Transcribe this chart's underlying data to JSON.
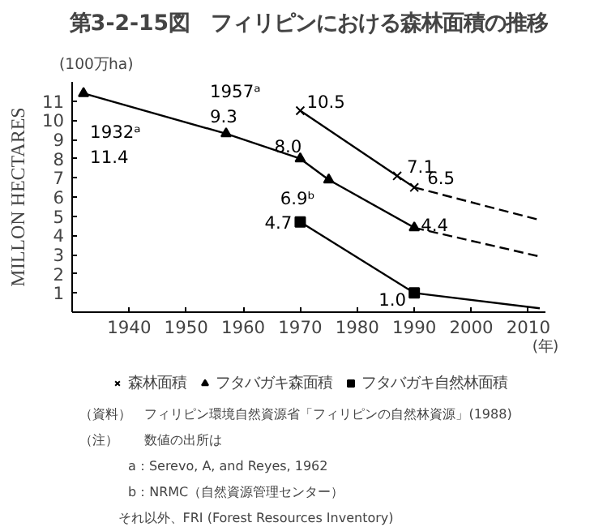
{
  "chart_data": {
    "type": "line",
    "title": "第3-2-15図　フィリピンにおける森林面積の推移",
    "ylabel": "MILLON HECTARES",
    "xlabel": "(年)",
    "xlim": [
      1930,
      2013
    ],
    "xticks": [
      1940,
      1950,
      1960,
      1970,
      1980,
      1990,
      2000,
      2010
    ],
    "ylim": [
      0,
      12
    ],
    "yticks": [
      1,
      2,
      3,
      4,
      5,
      6,
      7,
      8,
      9,
      10,
      11
    ],
    "grid": false,
    "legend": "bottom",
    "line_style": "solid",
    "series": [
      {
        "name": "森林面積",
        "color": "#000000",
        "marker": "cross",
        "x": [
          1970,
          1987,
          1990
        ],
        "values": [
          10.5,
          7.1,
          6.5
        ],
        "value_labels": [
          "10.5",
          "7.1",
          "6.5"
        ]
      },
      {
        "name": "フタバガキ森面積",
        "color": "#000000",
        "marker": "triangle",
        "x": [
          1932,
          1957,
          1970,
          1975,
          1990
        ],
        "values": [
          11.4,
          9.3,
          8.0,
          6.9,
          4.4
        ],
        "value_labels": [
          "1932ᵃ\n11.4",
          "1957ᵃ\n9.3",
          "8.0",
          "6.9ᵇ",
          "4.4"
        ]
      },
      {
        "name": "フタバガキ自然林面積",
        "color": "#000000",
        "marker": "square",
        "x": [
          1970,
          1990
        ],
        "values": [
          4.7,
          1.0
        ],
        "value_labels": [
          "4.7",
          "1.0"
        ]
      },
      {
        "color": "#000000",
        "marker": "none",
        "line_style": "dashed",
        "x": [
          1990,
          2012
        ],
        "values": [
          6.5,
          4.8
        ]
      },
      {
        "color": "#000000",
        "marker": "none",
        "line_style": "dashed",
        "x": [
          1990,
          2012
        ],
        "values": [
          4.4,
          2.9
        ]
      },
      {
        "color": "#000000",
        "marker": "none",
        "line_style": "solid",
        "x": [
          1990,
          2012
        ],
        "values": [
          1.0,
          0.2
        ]
      }
    ],
    "annotations": [
      "(100万ha)",
      "（資料）　フィリピン環境自然資源省「フィリピンの自然林資源」(1988)",
      "（注）　　数値の出所は",
      "a：Serevo, A, and Reyes, 1962",
      "b：NRMC（自然資源管理センター）",
      "それ以外、FRI (Forest Resources Inventory)"
    ]
  }
}
